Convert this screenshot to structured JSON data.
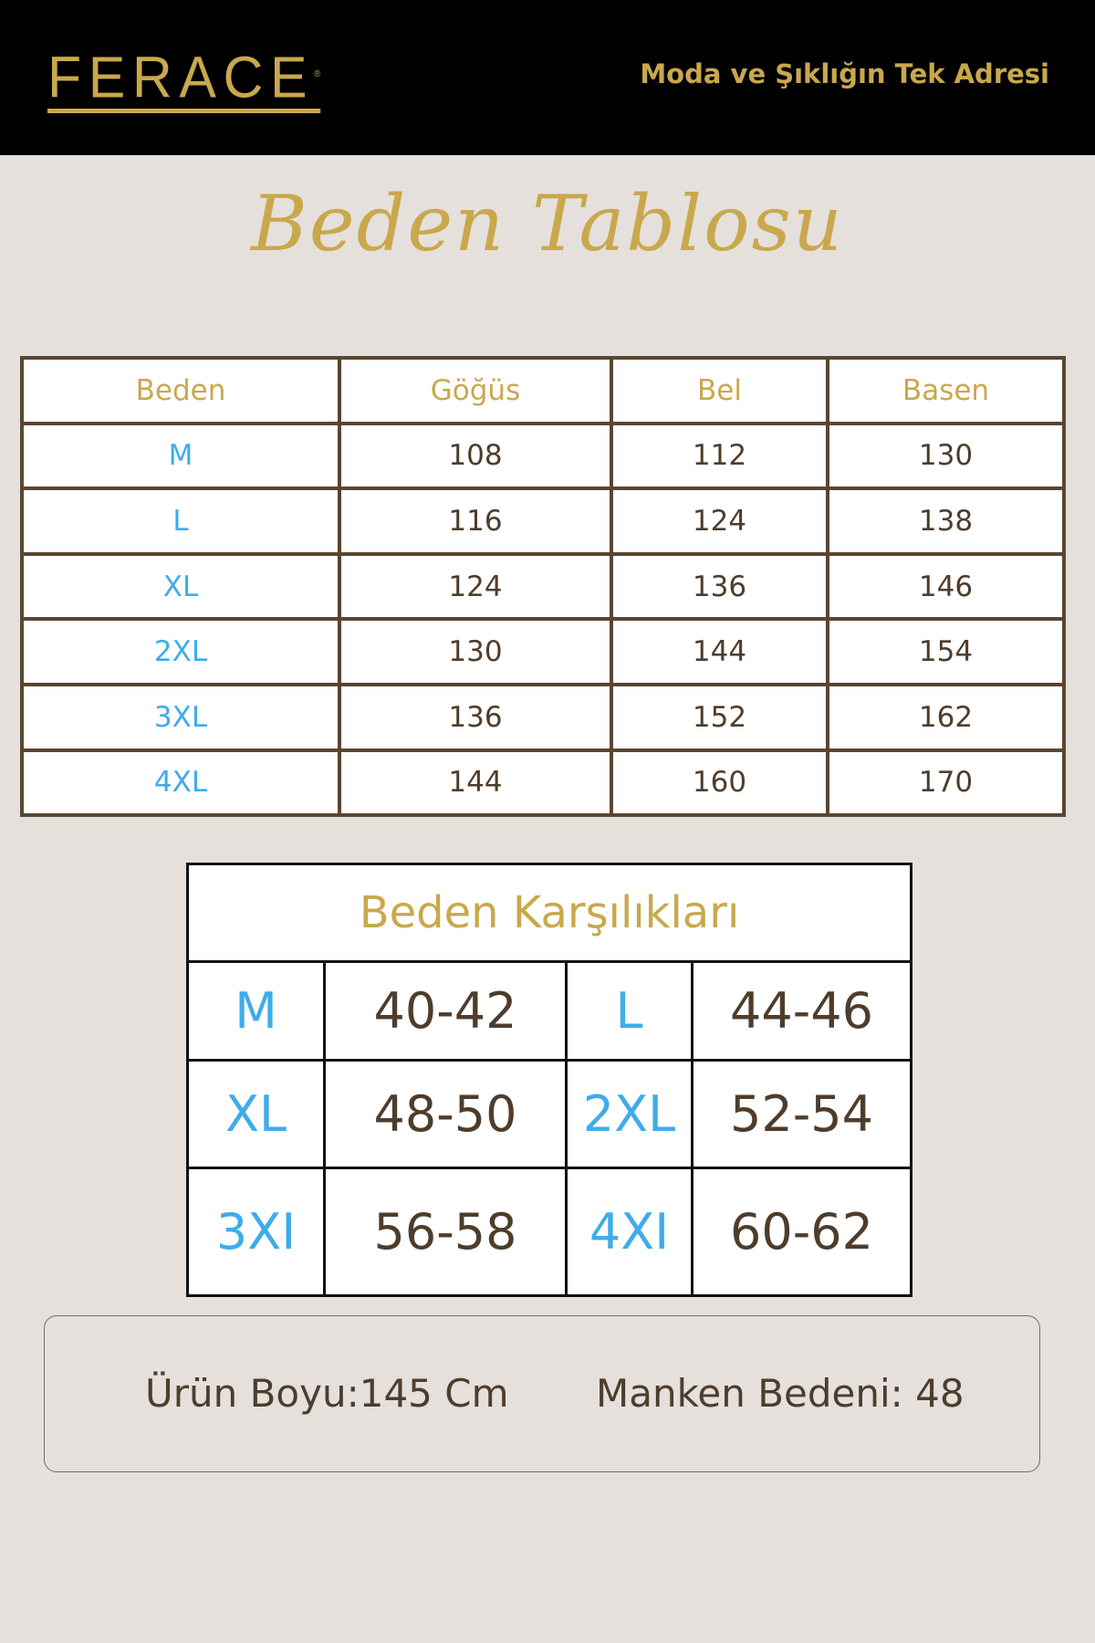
{
  "header": {
    "logo": "FERACE",
    "logo_mark": "®",
    "tagline": "Moda ve Şıklığın Tek Adresi",
    "accent": "#c9a84c",
    "background": "#000000"
  },
  "title": "Beden Tablosu",
  "size_table": {
    "columns": [
      "Beden",
      "Göğüs",
      "Bel",
      "Basen"
    ],
    "rows": [
      [
        "M",
        "108",
        "112",
        "130"
      ],
      [
        "L",
        "116",
        "124",
        "138"
      ],
      [
        "XL",
        "124",
        "136",
        "146"
      ],
      [
        "2XL",
        "130",
        "144",
        "154"
      ],
      [
        "3XL",
        "136",
        "152",
        "162"
      ],
      [
        "4XL",
        "144",
        "160",
        "170"
      ]
    ]
  },
  "equivalents": {
    "title": "Beden Karşılıkları",
    "rows": [
      [
        "M",
        "40-42",
        "L",
        "44-46"
      ],
      [
        "XL",
        "48-50",
        "2XL",
        "52-54"
      ],
      [
        "3XI",
        "56-58",
        "4XI",
        "60-62"
      ]
    ]
  },
  "note": {
    "length": "Ürün Boyu:145 Cm",
    "model_size": "Manken Bedeni: 48"
  },
  "colors": {
    "size_label": "#3eacea",
    "text": "#4e3d2c",
    "border": "#5a4630"
  }
}
